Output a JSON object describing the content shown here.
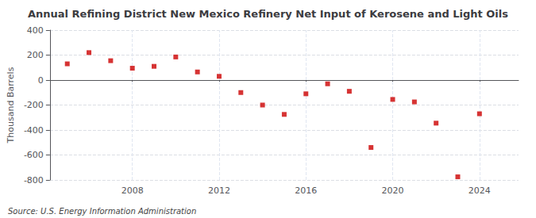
{
  "chart_data": {
    "type": "scatter",
    "title": "Annual Refining District New Mexico Refinery Net Input of Kerosene and Light Oils",
    "ylabel": "Thousand Barrels",
    "annotations": [
      "Source: U.S. Energy Information Administration"
    ],
    "x": [
      2005,
      2006,
      2007,
      2008,
      2009,
      2010,
      2011,
      2012,
      2013,
      2014,
      2015,
      2016,
      2017,
      2018,
      2019,
      2020,
      2021,
      2022,
      2023,
      2024
    ],
    "values": [
      130,
      220,
      155,
      95,
      110,
      185,
      65,
      30,
      -100,
      -200,
      -275,
      -110,
      -30,
      -90,
      -540,
      -155,
      -175,
      -345,
      -775,
      -270
    ],
    "color": "#cc0000",
    "marker": "square",
    "xlim": [
      2004.2,
      2025.8
    ],
    "xticks": [
      2008,
      2012,
      2016,
      2020,
      2024
    ],
    "ylim": [
      -800,
      400
    ],
    "yticks": [
      -800,
      -600,
      -400,
      -200,
      0,
      200,
      400
    ],
    "grid": true
  }
}
